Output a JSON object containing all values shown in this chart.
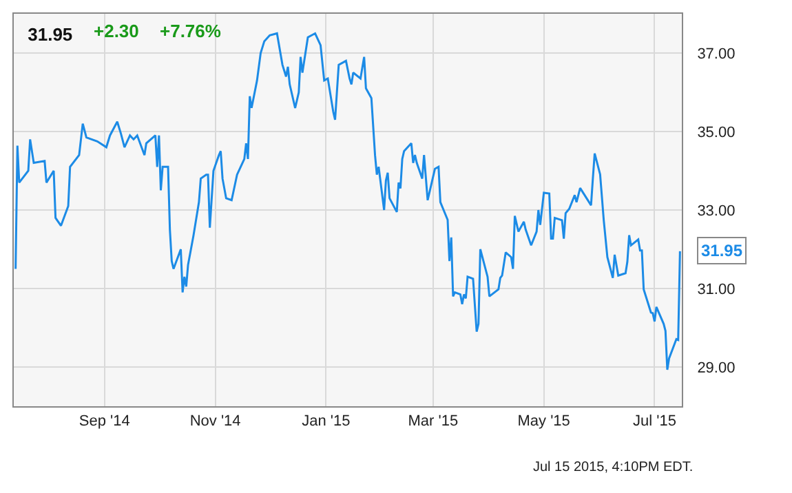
{
  "chart_data": {
    "type": "line",
    "title": "31.95",
    "annotations": [
      "+2.30",
      "+7.76%",
      {
        "text": "31.95",
        "x": "2015-07-15",
        "y": 31.95
      },
      "Jul 15 2015, 4:10PM EDT."
    ],
    "x": [
      "2014-07-14",
      "2014-07-15",
      "2014-07-16",
      "2014-07-21",
      "2014-07-22",
      "2014-07-24",
      "2014-07-30",
      "2014-07-31",
      "2014-08-04",
      "2014-08-05",
      "2014-08-08",
      "2014-08-12",
      "2014-08-13",
      "2014-08-18",
      "2014-08-20",
      "2014-08-22",
      "2014-08-28",
      "2014-09-02",
      "2014-09-04",
      "2014-09-08",
      "2014-09-10",
      "2014-09-12",
      "2014-09-15",
      "2014-09-17",
      "2014-09-19",
      "2014-09-23",
      "2014-09-24",
      "2014-09-29",
      "2014-09-30",
      "2014-10-01",
      "2014-10-02",
      "2014-10-03",
      "2014-10-06",
      "2014-10-07",
      "2014-10-08",
      "2014-10-09",
      "2014-10-13",
      "2014-10-14",
      "2014-10-15",
      "2014-10-16",
      "2014-10-17",
      "2014-10-20",
      "2014-10-23",
      "2014-10-24",
      "2014-10-27",
      "2014-10-28",
      "2014-10-29",
      "2014-10-31",
      "2014-11-03",
      "2014-11-04",
      "2014-11-05",
      "2014-11-07",
      "2014-11-10",
      "2014-11-13",
      "2014-11-17",
      "2014-11-18",
      "2014-11-19",
      "2014-11-20",
      "2014-11-21",
      "2014-11-24",
      "2014-11-26",
      "2014-11-28",
      "2014-12-01",
      "2014-12-05",
      "2014-12-08",
      "2014-12-10",
      "2014-12-11",
      "2014-12-12",
      "2014-12-15",
      "2014-12-17",
      "2014-12-18",
      "2014-12-19",
      "2014-12-22",
      "2014-12-26",
      "2014-12-29",
      "2014-12-31",
      "2015-01-02",
      "2015-01-05",
      "2015-01-06",
      "2015-01-08",
      "2015-01-12",
      "2015-01-14",
      "2015-01-15",
      "2015-01-16",
      "2015-01-20",
      "2015-01-22",
      "2015-01-23",
      "2015-01-26",
      "2015-01-28",
      "2015-01-29",
      "2015-01-30",
      "2015-02-02",
      "2015-02-03",
      "2015-02-04",
      "2015-02-05",
      "2015-02-09",
      "2015-02-10",
      "2015-02-11",
      "2015-02-12",
      "2015-02-13",
      "2015-02-17",
      "2015-02-18",
      "2015-02-19",
      "2015-02-20",
      "2015-02-23",
      "2015-02-24",
      "2015-02-26",
      "2015-03-02",
      "2015-03-04",
      "2015-03-05",
      "2015-03-09",
      "2015-03-10",
      "2015-03-11",
      "2015-03-12",
      "2015-03-13",
      "2015-03-16",
      "2015-03-17",
      "2015-03-18",
      "2015-03-19",
      "2015-03-20",
      "2015-03-23",
      "2015-03-25",
      "2015-03-26",
      "2015-03-27",
      "2015-03-31",
      "2015-04-01",
      "2015-04-06",
      "2015-04-07",
      "2015-04-08",
      "2015-04-10",
      "2015-04-13",
      "2015-04-14",
      "2015-04-15",
      "2015-04-17",
      "2015-04-20",
      "2015-04-21",
      "2015-04-24",
      "2015-04-27",
      "2015-04-28",
      "2015-04-29",
      "2015-05-01",
      "2015-05-04",
      "2015-05-05",
      "2015-05-06",
      "2015-05-07",
      "2015-05-11",
      "2015-05-12",
      "2015-05-13",
      "2015-05-15",
      "2015-05-18",
      "2015-05-19",
      "2015-05-21",
      "2015-05-27",
      "2015-05-28",
      "2015-05-29",
      "2015-06-01",
      "2015-06-03",
      "2015-06-05",
      "2015-06-08",
      "2015-06-09",
      "2015-06-11",
      "2015-06-15",
      "2015-06-16",
      "2015-06-17",
      "2015-06-18",
      "2015-06-22",
      "2015-06-23",
      "2015-06-24",
      "2015-06-25",
      "2015-06-29",
      "2015-06-30",
      "2015-07-01",
      "2015-07-02",
      "2015-07-06",
      "2015-07-07",
      "2015-07-08",
      "2015-07-09",
      "2015-07-13",
      "2015-07-14",
      "2015-07-15"
    ],
    "series": [
      {
        "color": "#1c8be6",
        "values": [
          31.5,
          34.64,
          33.7,
          34.0,
          34.8,
          34.2,
          34.25,
          33.7,
          34.0,
          32.8,
          32.6,
          33.1,
          34.1,
          34.4,
          35.2,
          34.85,
          34.75,
          34.6,
          34.9,
          35.25,
          34.95,
          34.6,
          34.9,
          34.8,
          34.9,
          34.4,
          34.7,
          34.9,
          34.1,
          34.9,
          33.5,
          34.1,
          34.1,
          32.5,
          31.7,
          31.5,
          32.0,
          30.9,
          31.3,
          31.05,
          31.6,
          32.35,
          33.2,
          33.8,
          33.9,
          33.9,
          32.55,
          34.0,
          34.4,
          34.5,
          33.8,
          33.3,
          33.25,
          33.9,
          34.3,
          34.7,
          34.3,
          35.9,
          35.6,
          36.3,
          37.0,
          37.3,
          37.45,
          37.5,
          36.7,
          36.4,
          36.65,
          36.2,
          35.6,
          36.0,
          36.9,
          36.5,
          37.4,
          37.5,
          37.2,
          36.3,
          36.35,
          35.5,
          35.3,
          36.7,
          36.8,
          36.35,
          36.2,
          36.5,
          36.35,
          36.9,
          36.1,
          35.85,
          34.4,
          33.9,
          34.1,
          33.0,
          33.75,
          33.95,
          33.3,
          32.95,
          33.7,
          33.55,
          34.3,
          34.5,
          34.7,
          34.2,
          34.4,
          34.2,
          33.8,
          34.4,
          33.25,
          34.05,
          34.1,
          33.2,
          32.75,
          31.7,
          32.3,
          30.8,
          30.9,
          30.85,
          30.6,
          30.85,
          30.75,
          31.3,
          31.25,
          29.9,
          30.1,
          32.0,
          31.3,
          30.8,
          30.98,
          31.27,
          31.33,
          31.92,
          31.8,
          31.5,
          32.85,
          32.45,
          32.7,
          32.5,
          32.1,
          32.45,
          33.0,
          32.62,
          33.44,
          33.42,
          32.27,
          32.27,
          32.8,
          32.74,
          32.27,
          32.92,
          33.03,
          33.38,
          33.2,
          33.56,
          33.12,
          33.8,
          34.44,
          33.91,
          32.74,
          31.8,
          31.27,
          31.86,
          31.33,
          31.39,
          31.68,
          32.36,
          32.1,
          32.25,
          31.97,
          31.97,
          30.98,
          30.39,
          30.37,
          30.16,
          30.53,
          30.1,
          29.92,
          28.93,
          29.22,
          29.71,
          29.69,
          31.95
        ]
      }
    ],
    "xlim": [
      "2014-07-13",
      "2015-07-16"
    ],
    "xticks": [
      {
        "value": "2014-09-01",
        "label": "Sep '14"
      },
      {
        "value": "2014-11-01",
        "label": "Nov '14"
      },
      {
        "value": "2015-01-01",
        "label": "Jan '15"
      },
      {
        "value": "2015-03-01",
        "label": "Mar '15"
      },
      {
        "value": "2015-05-01",
        "label": "May '15"
      },
      {
        "value": "2015-07-01",
        "label": "Jul '15"
      }
    ],
    "ylim": [
      28,
      38
    ],
    "yticks": [
      {
        "value": 29,
        "label": "29.00"
      },
      {
        "value": 31,
        "label": "31.00"
      },
      {
        "value": 33,
        "label": "33.00"
      },
      {
        "value": 35,
        "label": "35.00"
      },
      {
        "value": 37,
        "label": "37.00"
      }
    ],
    "grid": true,
    "marker": "none",
    "line_style": "solid"
  }
}
